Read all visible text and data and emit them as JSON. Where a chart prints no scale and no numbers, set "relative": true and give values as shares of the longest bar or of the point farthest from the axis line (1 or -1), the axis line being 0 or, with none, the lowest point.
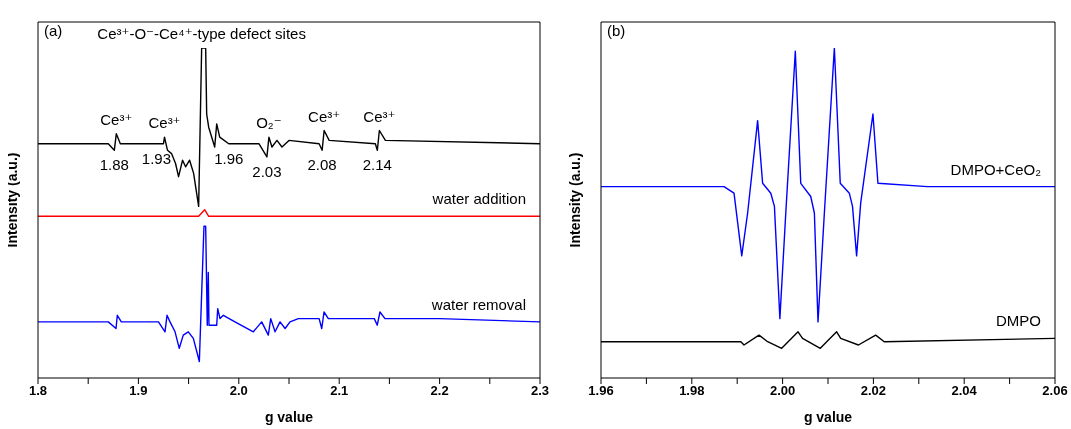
{
  "chart_data": [
    {
      "type": "line",
      "relative": true,
      "xlabel": "g value",
      "ylabel": "Intensity (a.u.)",
      "xlim": [
        1.8,
        2.3
      ],
      "xticks": [
        1.8,
        {
          "value": 1.85,
          "label": null
        },
        1.9,
        {
          "value": 1.95,
          "label": null
        },
        {
          "value": 2,
          "label": "2.0"
        },
        {
          "value": 2.05,
          "label": null
        },
        2.1,
        {
          "value": 2.15,
          "label": null
        },
        2.2,
        {
          "value": 2.25,
          "label": null
        },
        2.3
      ],
      "legend": false,
      "grid": false,
      "annotations": [
        "(a)",
        {
          "text": "Ce³⁺-O⁻-Ce⁴⁺-type defect sites",
          "x": 1.963,
          "y": 1.0
        },
        {
          "text": "Ce³⁺",
          "x": 1.878,
          "y": 0.74
        },
        {
          "text": "Ce³⁺",
          "x": 1.926,
          "y": 0.73
        },
        {
          "text": "O₂⁻",
          "x": 2.03,
          "y": 0.73
        },
        {
          "text": "Ce³⁺",
          "x": 2.085,
          "y": 0.75
        },
        {
          "text": "Ce³⁺",
          "x": 2.14,
          "y": 0.75
        },
        {
          "text": "1.88",
          "x": 1.876,
          "y": 0.69
        },
        {
          "text": "1.93",
          "x": 1.918,
          "y": 0.71
        },
        {
          "text": "1.96",
          "x": 1.99,
          "y": 0.71
        },
        {
          "text": "2.03",
          "x": 2.028,
          "y": 0.67
        },
        {
          "text": "2.08",
          "x": 2.083,
          "y": 0.69
        },
        {
          "text": "2.14",
          "x": 2.138,
          "y": 0.69
        }
      ],
      "series": [
        {
          "color": "#000000",
          "x": [
            1.8,
            1.87,
            1.876,
            1.878,
            1.882,
            1.918,
            1.925,
            1.926,
            1.929,
            1.933,
            1.937,
            1.94,
            1.944,
            1.947,
            1.951,
            1.955,
            1.96,
            1.963,
            1.967,
            1.968,
            1.97,
            1.976,
            1.978,
            1.981,
            1.99,
            2.02,
            2.028,
            2.03,
            2.033,
            2.038,
            2.043,
            2.05,
            2.08,
            2.083,
            2.085,
            2.09,
            2.136,
            2.138,
            2.14,
            2.146,
            2.3
          ],
          "values": [
            0.71,
            0.71,
            0.69,
            0.74,
            0.71,
            0.71,
            0.71,
            0.73,
            0.69,
            0.68,
            0.65,
            0.61,
            0.66,
            0.64,
            0.66,
            0.62,
            0.52,
            1.0,
            1.0,
            0.8,
            0.76,
            0.7,
            0.77,
            0.73,
            0.71,
            0.71,
            0.67,
            0.73,
            0.7,
            0.72,
            0.7,
            0.72,
            0.71,
            0.69,
            0.75,
            0.72,
            0.71,
            0.69,
            0.75,
            0.72,
            0.71
          ]
        },
        {
          "name": "water addition",
          "color": "#ff0000",
          "x": [
            1.8,
            1.96,
            1.966,
            1.97,
            2.3
          ],
          "values": [
            0.49,
            0.49,
            0.51,
            0.49,
            0.49
          ]
        },
        {
          "name": "water removal",
          "color": "#0000ff",
          "x": [
            1.8,
            1.87,
            1.8777,
            1.879,
            1.883,
            1.92,
            1.9265,
            1.9285,
            1.9315,
            1.9365,
            1.9407,
            1.9447,
            1.9497,
            1.9547,
            1.9607,
            1.9653,
            1.967,
            1.9686,
            1.9696,
            1.9703,
            1.978,
            1.979,
            1.9813,
            1.9846,
            1.9962,
            2.0145,
            2.0228,
            2.0294,
            2.0318,
            2.0361,
            2.0411,
            2.0461,
            2.051,
            2.0593,
            2.08,
            2.0826,
            2.0849,
            2.0892,
            2.135,
            2.1379,
            2.1406,
            2.1456,
            2.2,
            2.3
          ],
          "values": [
            0.17,
            0.17,
            0.15,
            0.19,
            0.17,
            0.17,
            0.14,
            0.19,
            0.17,
            0.14,
            0.09,
            0.13,
            0.14,
            0.12,
            0.05,
            0.46,
            0.46,
            0.16,
            0.32,
            0.16,
            0.16,
            0.21,
            0.18,
            0.19,
            0.17,
            0.14,
            0.17,
            0.13,
            0.18,
            0.14,
            0.17,
            0.15,
            0.17,
            0.18,
            0.18,
            0.15,
            0.2,
            0.18,
            0.18,
            0.16,
            0.2,
            0.18,
            0.18,
            0.17
          ]
        }
      ]
    },
    {
      "type": "line",
      "relative": true,
      "xlabel": "g value",
      "ylabel": "Intensity (a.u.)",
      "xlim": [
        1.96,
        2.06
      ],
      "xticks": [
        1.96,
        {
          "value": 1.97,
          "label": null
        },
        1.98,
        {
          "value": 1.99,
          "label": null
        },
        {
          "value": 2,
          "label": "2.00"
        },
        {
          "value": 2.01,
          "label": null
        },
        2.02,
        {
          "value": 2.03,
          "label": null
        },
        2.04,
        {
          "value": 2.05,
          "label": null
        },
        2.06
      ],
      "legend": false,
      "grid": false,
      "annotations": [
        "(b)"
      ],
      "series": [
        {
          "name": "DMPO+CeO₂",
          "color": "#0000ff",
          "x": [
            1.96,
            1.9871,
            1.9893,
            1.991,
            1.9923,
            1.9945,
            1.9956,
            1.9974,
            1.9982,
            1.9994,
            2.0007,
            2.0028,
            2.004,
            2.0062,
            2.007,
            2.0078,
            2.0092,
            2.0114,
            2.0127,
            2.0147,
            2.0154,
            2.0163,
            2.0172,
            2.0199,
            2.021,
            2.0319,
            2.06
          ],
          "values": [
            0.58,
            0.58,
            0.56,
            0.37,
            0.5,
            0.78,
            0.59,
            0.56,
            0.52,
            0.18,
            0.5,
            0.99,
            0.59,
            0.55,
            0.5,
            0.17,
            0.5,
            1.0,
            0.59,
            0.56,
            0.52,
            0.37,
            0.53,
            0.8,
            0.59,
            0.58,
            0.58
          ]
        },
        {
          "name": "DMPO",
          "color": "#000000",
          "x": [
            1.96,
            1.9908,
            1.9915,
            1.9948,
            1.9967,
            1.9998,
            2.0034,
            2.0044,
            2.0083,
            2.0119,
            2.0128,
            2.0167,
            2.0205,
            2.0224,
            2.06
          ],
          "values": [
            0.11,
            0.11,
            0.1,
            0.13,
            0.11,
            0.09,
            0.14,
            0.12,
            0.09,
            0.14,
            0.12,
            0.1,
            0.13,
            0.11,
            0.12
          ]
        }
      ]
    }
  ]
}
